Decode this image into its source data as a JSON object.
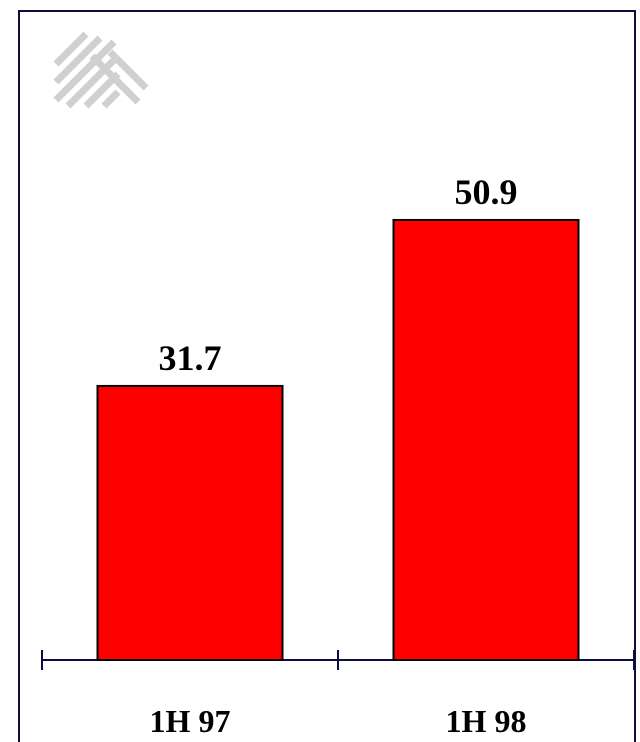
{
  "chart_data": {
    "type": "bar",
    "categories": [
      "1H 97",
      "1H 98"
    ],
    "values": [
      31.7,
      50.9
    ],
    "value_labels": [
      "31.7",
      "50.9"
    ],
    "title": "",
    "xlabel": "",
    "ylabel": "",
    "ylim": [
      0,
      62
    ],
    "grid": false,
    "colors": {
      "bar": "#ff0000",
      "bar_outline": "#000000",
      "axis": "#0d0d40",
      "text": "#000000",
      "logo": "#d0d0d0"
    }
  },
  "logo": {
    "icon": "corporate-logo-icon"
  }
}
